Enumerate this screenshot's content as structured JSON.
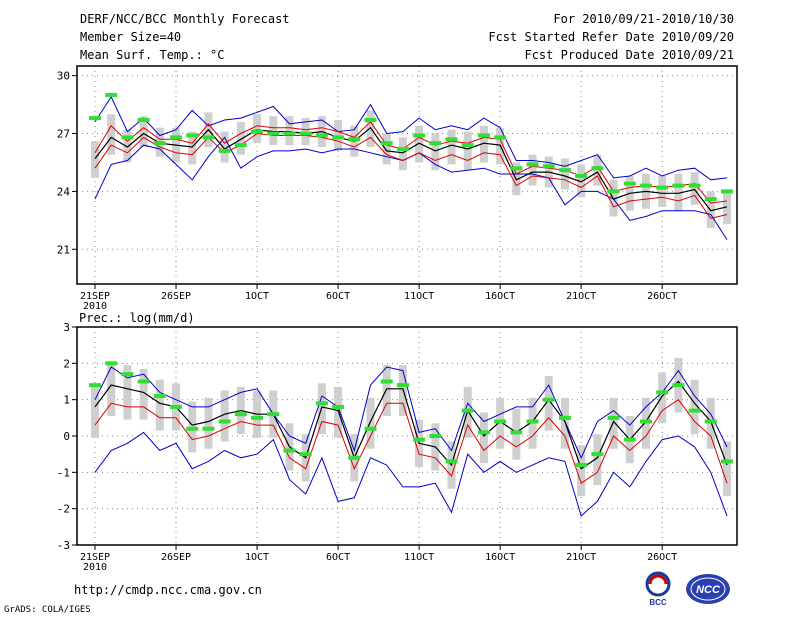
{
  "header": {
    "title": "DERF/NCC/BCC Monthly Forecast",
    "member_size": "Member Size=40",
    "variable": "Mean Surf. Temp.: °C",
    "period": "For 2010/09/21-2010/10/30",
    "start_date": "Fcst Started Refer Date 2010/09/20",
    "produced_date": "Fcst Produced Date 2010/09/21"
  },
  "footer": {
    "url": "http://cmdp.ncc.cma.gov.cn",
    "grads": "GrADS: COLA/IGES",
    "logo1_text": "BCC",
    "logo2_text": "NCC"
  },
  "colors": {
    "envelope": "#0000cc",
    "spread": "#dd0000",
    "mean": "#000000",
    "box": "#cfcfcf",
    "marker": "#33dd33",
    "grid": "#888888"
  },
  "chart_data": [
    {
      "type": "line",
      "title": "Mean Surf. Temp.: °C",
      "x_tick_labels": [
        "21SEP",
        "26SEP",
        "1OCT",
        "6OCT",
        "11OCT",
        "16OCT",
        "21OCT",
        "26OCT"
      ],
      "x_tick_days": [
        1,
        6,
        11,
        16,
        21,
        26,
        31,
        36
      ],
      "x_year_label": "2010",
      "xlim": [
        1,
        40
      ],
      "ylim": [
        19.2,
        30.5
      ],
      "y_ticks": [
        21,
        24,
        27,
        30
      ],
      "grid": true,
      "series": [
        {
          "name": "max",
          "values": [
            23.6,
            25.4,
            25.6,
            26.4,
            26.2,
            25.4,
            24.6,
            25.8,
            26.8,
            25.2,
            25.8,
            26.1,
            26.1,
            26.2,
            26.0,
            26.2,
            26.2,
            26.0,
            25.8,
            25.6,
            26.0,
            25.4,
            25.0,
            25.1,
            25.2,
            24.9,
            24.9,
            24.9,
            24.7,
            23.3,
            24.0,
            24.0,
            23.6,
            22.5,
            22.7,
            23.0,
            23.0,
            23.0,
            22.8,
            21.5
          ]
        },
        {
          "name": "ens_p10",
          "values": [
            25.2,
            26.4,
            26.0,
            26.8,
            26.3,
            26.0,
            25.9,
            26.8,
            26.0,
            26.4,
            27.0,
            26.9,
            26.9,
            26.9,
            26.8,
            26.6,
            26.3,
            26.8,
            25.9,
            25.6,
            26.0,
            25.6,
            25.9,
            25.6,
            26.0,
            25.9,
            24.3,
            24.8,
            24.7,
            24.6,
            24.2,
            24.8,
            23.2,
            23.5,
            23.6,
            23.7,
            23.5,
            23.8,
            22.6,
            22.8
          ]
        },
        {
          "name": "ens_mean",
          "values": [
            25.7,
            26.8,
            26.3,
            27.0,
            26.5,
            26.4,
            26.3,
            27.2,
            26.2,
            26.7,
            27.2,
            27.1,
            27.1,
            27.0,
            27.1,
            26.8,
            26.6,
            27.3,
            26.1,
            26.0,
            26.5,
            26.1,
            26.4,
            26.2,
            26.5,
            26.4,
            24.6,
            25.0,
            25.0,
            24.8,
            24.5,
            25.0,
            23.6,
            23.9,
            24.0,
            23.9,
            23.9,
            24.1,
            23.0,
            23.2
          ]
        },
        {
          "name": "ens_p90",
          "values": [
            26.0,
            27.4,
            26.6,
            27.3,
            26.7,
            26.7,
            26.5,
            27.5,
            26.5,
            27.0,
            27.4,
            27.3,
            27.3,
            27.2,
            27.3,
            27.1,
            26.8,
            27.6,
            26.4,
            26.2,
            26.8,
            26.4,
            26.6,
            26.5,
            26.8,
            26.7,
            24.9,
            25.3,
            25.2,
            25.1,
            24.8,
            25.3,
            24.0,
            24.2,
            24.3,
            24.2,
            24.3,
            24.4,
            23.4,
            23.5
          ]
        },
        {
          "name": "min",
          "values": [
            27.6,
            28.9,
            27.1,
            27.8,
            26.9,
            27.2,
            28.2,
            27.4,
            27.7,
            27.8,
            28.1,
            28.4,
            27.5,
            27.6,
            27.7,
            27.1,
            27.2,
            28.5,
            27.0,
            27.1,
            27.8,
            27.2,
            27.4,
            27.2,
            27.8,
            27.3,
            25.6,
            25.6,
            25.5,
            25.3,
            25.6,
            25.9,
            24.7,
            24.8,
            25.2,
            24.8,
            25.1,
            25.2,
            24.6,
            24.7
          ]
        },
        {
          "name": "observed_marker",
          "values": [
            27.8,
            29.0,
            26.8,
            27.7,
            26.5,
            26.8,
            26.9,
            26.8,
            26.1,
            26.4,
            27.1,
            27.0,
            27.0,
            27.0,
            26.9,
            26.8,
            26.7,
            27.7,
            26.5,
            26.2,
            26.9,
            26.5,
            26.7,
            26.4,
            26.9,
            26.8,
            25.2,
            25.4,
            25.3,
            25.1,
            24.8,
            25.2,
            24.0,
            24.4,
            24.3,
            24.2,
            24.3,
            24.3,
            23.6,
            24.0
          ]
        }
      ]
    },
    {
      "type": "line",
      "title": "Prec.: log(mm/d)",
      "x_tick_labels": [
        "21SEP",
        "26SEP",
        "1OCT",
        "6OCT",
        "11OCT",
        "16OCT",
        "21OCT",
        "26OCT"
      ],
      "x_tick_days": [
        1,
        6,
        11,
        16,
        21,
        26,
        31,
        36
      ],
      "x_year_label": "2010",
      "xlim": [
        1,
        40
      ],
      "ylim": [
        -3,
        3
      ],
      "y_ticks": [
        -3,
        -2,
        -1,
        0,
        1,
        2,
        3
      ],
      "grid": true,
      "series": [
        {
          "name": "max",
          "values": [
            1.0,
            1.9,
            1.6,
            1.7,
            1.2,
            1.0,
            0.8,
            0.8,
            1.0,
            1.2,
            1.3,
            0.6,
            0.0,
            -0.2,
            1.1,
            0.8,
            -0.4,
            1.4,
            1.9,
            1.8,
            0.1,
            0.2,
            -0.4,
            0.9,
            0.4,
            0.6,
            0.8,
            0.8,
            1.4,
            0.4,
            -0.6,
            0.4,
            0.7,
            0.3,
            0.8,
            1.2,
            1.8,
            1.1,
            0.6,
            -0.3
          ]
        },
        {
          "name": "ens_mean",
          "values": [
            0.8,
            1.4,
            1.3,
            1.2,
            0.9,
            0.8,
            0.3,
            0.4,
            0.6,
            0.7,
            0.6,
            0.6,
            -0.3,
            -0.6,
            0.8,
            0.7,
            -0.6,
            0.4,
            1.3,
            1.3,
            -0.2,
            -0.3,
            -0.8,
            0.7,
            0.0,
            0.4,
            0.1,
            0.4,
            1.0,
            0.4,
            -0.9,
            -0.6,
            0.4,
            -0.1,
            0.4,
            1.1,
            1.5,
            0.9,
            0.4,
            -0.8
          ]
        },
        {
          "name": "ens_p10",
          "values": [
            0.3,
            0.9,
            0.8,
            0.8,
            0.5,
            0.5,
            -0.1,
            0.0,
            0.2,
            0.4,
            0.3,
            0.3,
            -0.6,
            -0.9,
            0.4,
            0.3,
            -0.9,
            0.0,
            0.9,
            0.9,
            -0.5,
            -0.6,
            -1.1,
            0.3,
            -0.4,
            0.0,
            -0.3,
            0.0,
            0.5,
            0.0,
            -1.3,
            -1.0,
            0.0,
            -0.4,
            0.0,
            0.7,
            1.0,
            0.4,
            0.0,
            -1.3
          ]
        },
        {
          "name": "min",
          "values": [
            -1.0,
            -0.4,
            -0.2,
            0.1,
            -0.4,
            -0.2,
            -0.9,
            -0.7,
            -0.4,
            -0.6,
            -0.5,
            -0.1,
            -1.2,
            -1.6,
            -0.6,
            -1.8,
            -1.7,
            -0.6,
            -0.8,
            -1.4,
            -1.4,
            -1.3,
            -2.1,
            -0.5,
            -1.0,
            -0.7,
            -1.0,
            -0.8,
            -0.6,
            -0.7,
            -2.2,
            -1.8,
            -1.0,
            -1.4,
            -0.7,
            -0.1,
            0.0,
            -0.3,
            -1.0,
            -2.2
          ]
        },
        {
          "name": "observed_marker",
          "values": [
            1.4,
            2.0,
            1.7,
            1.5,
            1.1,
            0.8,
            0.2,
            0.2,
            0.4,
            0.6,
            0.5,
            0.6,
            -0.4,
            -0.5,
            0.9,
            0.8,
            -0.6,
            0.2,
            1.5,
            1.4,
            -0.1,
            0.0,
            -0.7,
            0.7,
            0.1,
            0.4,
            0.1,
            0.4,
            1.0,
            0.5,
            -0.8,
            -0.5,
            0.5,
            -0.1,
            0.4,
            1.2,
            1.4,
            0.7,
            0.4,
            -0.7
          ]
        }
      ]
    }
  ]
}
